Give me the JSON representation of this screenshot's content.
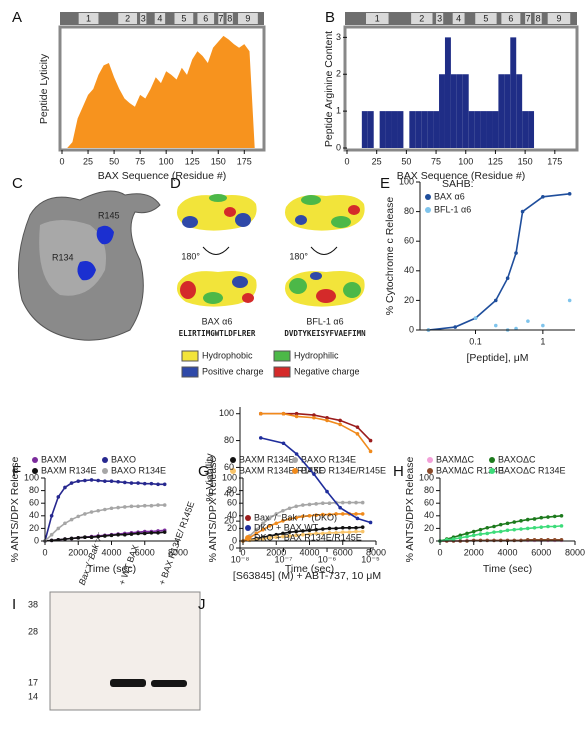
{
  "panel_labels": [
    "A",
    "B",
    "C",
    "D",
    "E",
    "F",
    "G",
    "H",
    "I",
    "J"
  ],
  "bax_helices": [
    {
      "label": "1",
      "start": 16,
      "end": 35
    },
    {
      "label": "2",
      "start": 54,
      "end": 72
    },
    {
      "label": "3",
      "start": 75,
      "end": 81
    },
    {
      "label": "4",
      "start": 89,
      "end": 99
    },
    {
      "label": "5",
      "start": 108,
      "end": 126
    },
    {
      "label": "6",
      "start": 130,
      "end": 146
    },
    {
      "label": "7",
      "start": 150,
      "end": 155
    },
    {
      "label": "8",
      "start": 158,
      "end": 164
    },
    {
      "label": "9",
      "start": 169,
      "end": 188
    }
  ],
  "structure": {
    "labels": [
      "R145",
      "R134"
    ]
  },
  "peptides": {
    "rotation": "180°",
    "items": [
      {
        "name": "BAX α6",
        "sequence": "ELIRTIMGWTLDFLRER"
      },
      {
        "name": "BFL-1 α6",
        "sequence": "DVDTYKEISYFVAEFIMN"
      }
    ],
    "legend": [
      {
        "label": "Hydrophobic",
        "color": "#f2e43a"
      },
      {
        "label": "Hydrophilic",
        "color": "#4cb848"
      },
      {
        "label": "Positive charge",
        "color": "#2f49a8"
      },
      {
        "label": "Negative charge",
        "color": "#d42a2a"
      }
    ]
  },
  "blot": {
    "lanes": [
      "Bax⁻/⁻Bak⁻/⁻",
      "+ WT BAX",
      "+ BAX R134E/ R145E"
    ],
    "markers": [
      38,
      28,
      17,
      14
    ]
  },
  "chart_data": [
    {
      "type": "area",
      "frame": "box",
      "ylabel": "Peptide Lyticity",
      "xlabel": "BAX Sequence (Residue #)",
      "xlim": [
        0,
        192
      ],
      "xticks": [
        0,
        25,
        50,
        75,
        100,
        125,
        150,
        175
      ],
      "ylim": [
        0,
        100
      ],
      "x": [
        5,
        10,
        15,
        20,
        25,
        30,
        35,
        40,
        45,
        50,
        55,
        60,
        65,
        70,
        75,
        80,
        85,
        90,
        95,
        100,
        105,
        110,
        115,
        120,
        125,
        130,
        135,
        140,
        145,
        150,
        155,
        160,
        165,
        170,
        175,
        180,
        185
      ],
      "series": [
        {
          "color": "#f7931e",
          "values": [
            0,
            5,
            25,
            35,
            45,
            50,
            62,
            70,
            72,
            60,
            50,
            42,
            38,
            35,
            45,
            42,
            50,
            60,
            55,
            65,
            62,
            58,
            68,
            62,
            75,
            82,
            78,
            72,
            85,
            90,
            95,
            92,
            88,
            85,
            88,
            82,
            0
          ]
        }
      ]
    },
    {
      "type": "step",
      "frame": "box",
      "ylabel": "Peptide Arginine Content",
      "xlabel": "BAX Sequence (Residue #)",
      "xlim": [
        0,
        192
      ],
      "xticks": [
        0,
        25,
        50,
        75,
        100,
        125,
        150,
        175
      ],
      "ylim": [
        0,
        3.2
      ],
      "yticks": [
        0,
        1,
        2,
        3
      ],
      "x": [
        5,
        10,
        15,
        20,
        25,
        30,
        35,
        40,
        45,
        50,
        55,
        60,
        65,
        70,
        75,
        80,
        85,
        90,
        95,
        100,
        105,
        110,
        115,
        120,
        125,
        130,
        135,
        140,
        145,
        150,
        155,
        160,
        165,
        170,
        175,
        180,
        185
      ],
      "series": [
        {
          "color": "#1f2d86",
          "values": [
            0,
            0,
            1,
            1,
            0,
            1,
            1,
            1,
            1,
            0,
            1,
            1,
            1,
            1,
            1,
            2,
            3,
            2,
            2,
            2,
            1,
            1,
            1,
            1,
            1,
            2,
            2,
            3,
            2,
            1,
            1,
            0,
            0,
            0,
            0,
            0,
            0
          ]
        }
      ]
    },
    {
      "type": "line",
      "markers": true,
      "xlog": true,
      "ylabel": "% Cytochrome c Release",
      "xlabel": "[Peptide], μM",
      "xlim": [
        0.015,
        3
      ],
      "xticks": [
        0.1,
        1
      ],
      "ylim": [
        0,
        100
      ],
      "yticks": [
        0,
        20,
        40,
        60,
        80,
        100
      ],
      "legend_title": "SAHB:",
      "series": [
        {
          "name": "BAX α6",
          "color": "#1f4e9c",
          "x": [
            0.02,
            0.05,
            0.1,
            0.2,
            0.3,
            0.4,
            0.5,
            1,
            2.5
          ],
          "values": [
            0,
            2,
            8,
            20,
            35,
            52,
            80,
            90,
            92
          ]
        },
        {
          "name": "BFL-1 α6",
          "color": "#7fc4ec",
          "line": false,
          "x": [
            0.02,
            0.1,
            0.2,
            0.3,
            0.4,
            0.6,
            1,
            2.5
          ],
          "values": [
            0,
            8,
            3,
            0,
            1,
            6,
            3,
            20
          ]
        }
      ]
    },
    {
      "type": "line",
      "markers": true,
      "ylabel": "% ANTS/DPX Release",
      "xlabel": "Time (sec)",
      "xlim": [
        0,
        8000
      ],
      "xticks": [
        0,
        2000,
        4000,
        6000,
        8000
      ],
      "ylim": [
        0,
        100
      ],
      "yticks": [
        0,
        20,
        40,
        60,
        80,
        100
      ],
      "x": [
        0,
        400,
        800,
        1200,
        1600,
        2000,
        2400,
        2800,
        3200,
        3600,
        4000,
        4400,
        4800,
        5200,
        5600,
        6000,
        6400,
        6800,
        7200
      ],
      "series": [
        {
          "name": "BAXM",
          "color": "#7b2c9c",
          "values": [
            0,
            1,
            2,
            3,
            4,
            5,
            6,
            7,
            8,
            9,
            10,
            11,
            12,
            13,
            14,
            15,
            15,
            16,
            17
          ]
        },
        {
          "name": "BAXO",
          "color": "#27288f",
          "values": [
            0,
            40,
            70,
            85,
            92,
            95,
            96,
            97,
            96,
            95,
            95,
            94,
            93,
            92,
            92,
            91,
            91,
            90,
            90
          ]
        },
        {
          "name": "BAXM R134E",
          "color": "#111111",
          "values": [
            0,
            1,
            2,
            3,
            4,
            5,
            6,
            6,
            7,
            8,
            9,
            10,
            10,
            11,
            12,
            12,
            13,
            13,
            14
          ]
        },
        {
          "name": "BAXO R134E",
          "color": "#a6a6a6",
          "values": [
            0,
            10,
            20,
            28,
            34,
            39,
            43,
            46,
            48,
            50,
            52,
            53,
            54,
            55,
            55,
            56,
            56,
            57,
            57
          ]
        }
      ]
    },
    {
      "type": "line",
      "markers": true,
      "ylabel": "% ANTS/DPX Release",
      "xlabel": "Time (sec)",
      "xlim": [
        0,
        8000
      ],
      "xticks": [
        0,
        2000,
        4000,
        6000,
        8000
      ],
      "ylim": [
        0,
        100
      ],
      "yticks": [
        0,
        20,
        40,
        60,
        80,
        100
      ],
      "x": [
        0,
        400,
        800,
        1200,
        1600,
        2000,
        2400,
        2800,
        3200,
        3600,
        4000,
        4400,
        4800,
        5200,
        5600,
        6000,
        6400,
        6800,
        7200
      ],
      "series": [
        {
          "name": "BAXM R134E",
          "color": "#111111",
          "values": [
            0,
            2,
            4,
            6,
            8,
            10,
            12,
            14,
            15,
            16,
            17,
            18,
            19,
            20,
            20,
            21,
            21,
            21,
            22
          ]
        },
        {
          "name": "BAXO R134E",
          "color": "#a6a6a6",
          "values": [
            0,
            8,
            18,
            28,
            36,
            43,
            48,
            52,
            55,
            57,
            58,
            59,
            60,
            60,
            61,
            61,
            61,
            61,
            61
          ]
        },
        {
          "name": "BAXM R134E/R145E",
          "color": "#f8c46a",
          "values": [
            0,
            1,
            2,
            3,
            5,
            6,
            7,
            8,
            9,
            10,
            11,
            12,
            12,
            13,
            13,
            14,
            14,
            15,
            15
          ]
        },
        {
          "name": "BAXO R134E/R145E",
          "color": "#f08a1c",
          "values": [
            0,
            5,
            12,
            18,
            24,
            28,
            32,
            35,
            37,
            39,
            40,
            41,
            42,
            42,
            43,
            43,
            43,
            43,
            43
          ]
        }
      ]
    },
    {
      "type": "line",
      "markers": true,
      "ylabel": "% ANTS/DPX Release",
      "xlabel": "Time (sec)",
      "xlim": [
        0,
        8000
      ],
      "xticks": [
        0,
        2000,
        4000,
        6000,
        8000
      ],
      "ylim": [
        0,
        100
      ],
      "yticks": [
        0,
        20,
        40,
        60,
        80,
        100
      ],
      "x": [
        0,
        400,
        800,
        1200,
        1600,
        2000,
        2400,
        2800,
        3200,
        3600,
        4000,
        4400,
        4800,
        5200,
        5600,
        6000,
        6400,
        6800,
        7200
      ],
      "series": [
        {
          "name": "BAXMΔC",
          "color": "#f2a0d8",
          "values": [
            0,
            0,
            0,
            0,
            1,
            1,
            1,
            1,
            1,
            1,
            1,
            1,
            1,
            1,
            1,
            1,
            1,
            1,
            1
          ]
        },
        {
          "name": "BAXOΔC",
          "color": "#1d7a1d",
          "values": [
            0,
            3,
            6,
            9,
            12,
            15,
            18,
            21,
            23,
            26,
            28,
            30,
            32,
            34,
            35,
            37,
            38,
            39,
            40
          ]
        },
        {
          "name": "BAXMΔC R134E",
          "color": "#8a4a2a",
          "values": [
            0,
            0,
            0,
            0,
            0,
            1,
            1,
            1,
            1,
            1,
            1,
            1,
            1,
            2,
            2,
            2,
            2,
            2,
            2
          ]
        },
        {
          "name": "BAXOΔC R134E",
          "color": "#3ddc7a",
          "values": [
            0,
            2,
            3,
            5,
            7,
            9,
            11,
            12,
            14,
            15,
            17,
            18,
            19,
            20,
            21,
            22,
            23,
            23,
            24
          ]
        }
      ]
    },
    {
      "type": "line",
      "markers": true,
      "xlog": true,
      "ylabel": "% Viability",
      "xlabel": "[S63845] (M) + ABT-737, 10 μM",
      "xlim": [
        1e-08,
        1.2e-05
      ],
      "xticks": [
        {
          "value": 1e-08,
          "label": "10⁻⁸"
        },
        {
          "value": 1e-07,
          "label": "10⁻⁷"
        },
        {
          "value": 1e-06,
          "label": "10⁻⁶"
        },
        {
          "value": 1e-05,
          "label": "10⁻⁵"
        }
      ],
      "ylim": [
        0,
        105
      ],
      "yticks": [
        0,
        20,
        40,
        60,
        80,
        100
      ],
      "x": [
        3e-08,
        1e-07,
        2e-07,
        5e-07,
        1e-06,
        2e-06,
        5e-06,
        1e-05
      ],
      "series": [
        {
          "name": "Bax⁻/⁻Bak⁻/⁻ (DKO)",
          "color": "#9b1c1c",
          "values": [
            100,
            100,
            100,
            99,
            97,
            95,
            90,
            80
          ]
        },
        {
          "name": "DKO + BAX WT",
          "color": "#1f2d9c",
          "values": [
            82,
            78,
            70,
            55,
            42,
            30,
            22,
            19
          ]
        },
        {
          "name": "DKO + BAX R134E/R145E",
          "color": "#f08a1c",
          "values": [
            100,
            100,
            98,
            97,
            95,
            92,
            85,
            72
          ]
        }
      ]
    }
  ]
}
